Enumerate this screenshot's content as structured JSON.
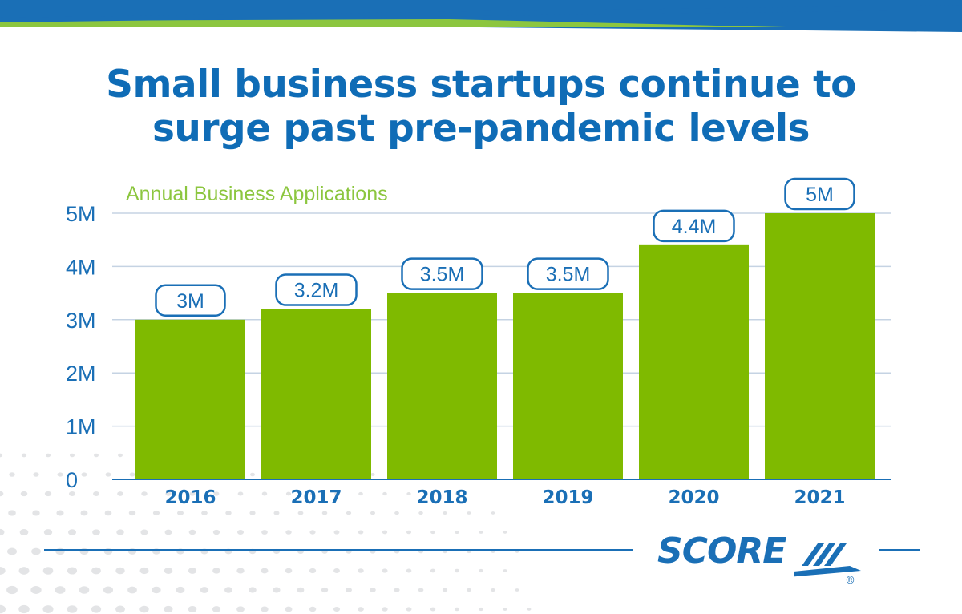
{
  "header": {
    "title_line1": "Small business startups continue to",
    "title_line2": "surge past pre-pandemic levels"
  },
  "brand": {
    "logo_text": "SCORE",
    "registered_mark": "®"
  },
  "colors": {
    "brand_blue": "#1a6fb6",
    "title_blue": "#0f6cb6",
    "bar_green": "#7fba00",
    "bar_green_light": "#a4cf4a",
    "accent_green": "#8cc63f",
    "grid": "#c5d3e3"
  },
  "chart_data": {
    "type": "bar",
    "title": "",
    "subtitle": "Annual Business Applications",
    "xlabel": "",
    "ylabel": "",
    "categories": [
      "2016",
      "2017",
      "2018",
      "2019",
      "2020",
      "2021"
    ],
    "values": [
      3.0,
      3.2,
      3.5,
      3.5,
      4.4,
      5.0
    ],
    "data_labels": [
      "3M",
      "3.2M",
      "3.5M",
      "3.5M",
      "4.4M",
      "5M"
    ],
    "unit": "millions",
    "ylim": [
      0,
      5
    ],
    "yticks": [
      0,
      1,
      2,
      3,
      4,
      5
    ],
    "ytick_labels": [
      "0",
      "1M",
      "2M",
      "3M",
      "4M",
      "5M"
    ],
    "grid": true,
    "legend": "none"
  }
}
